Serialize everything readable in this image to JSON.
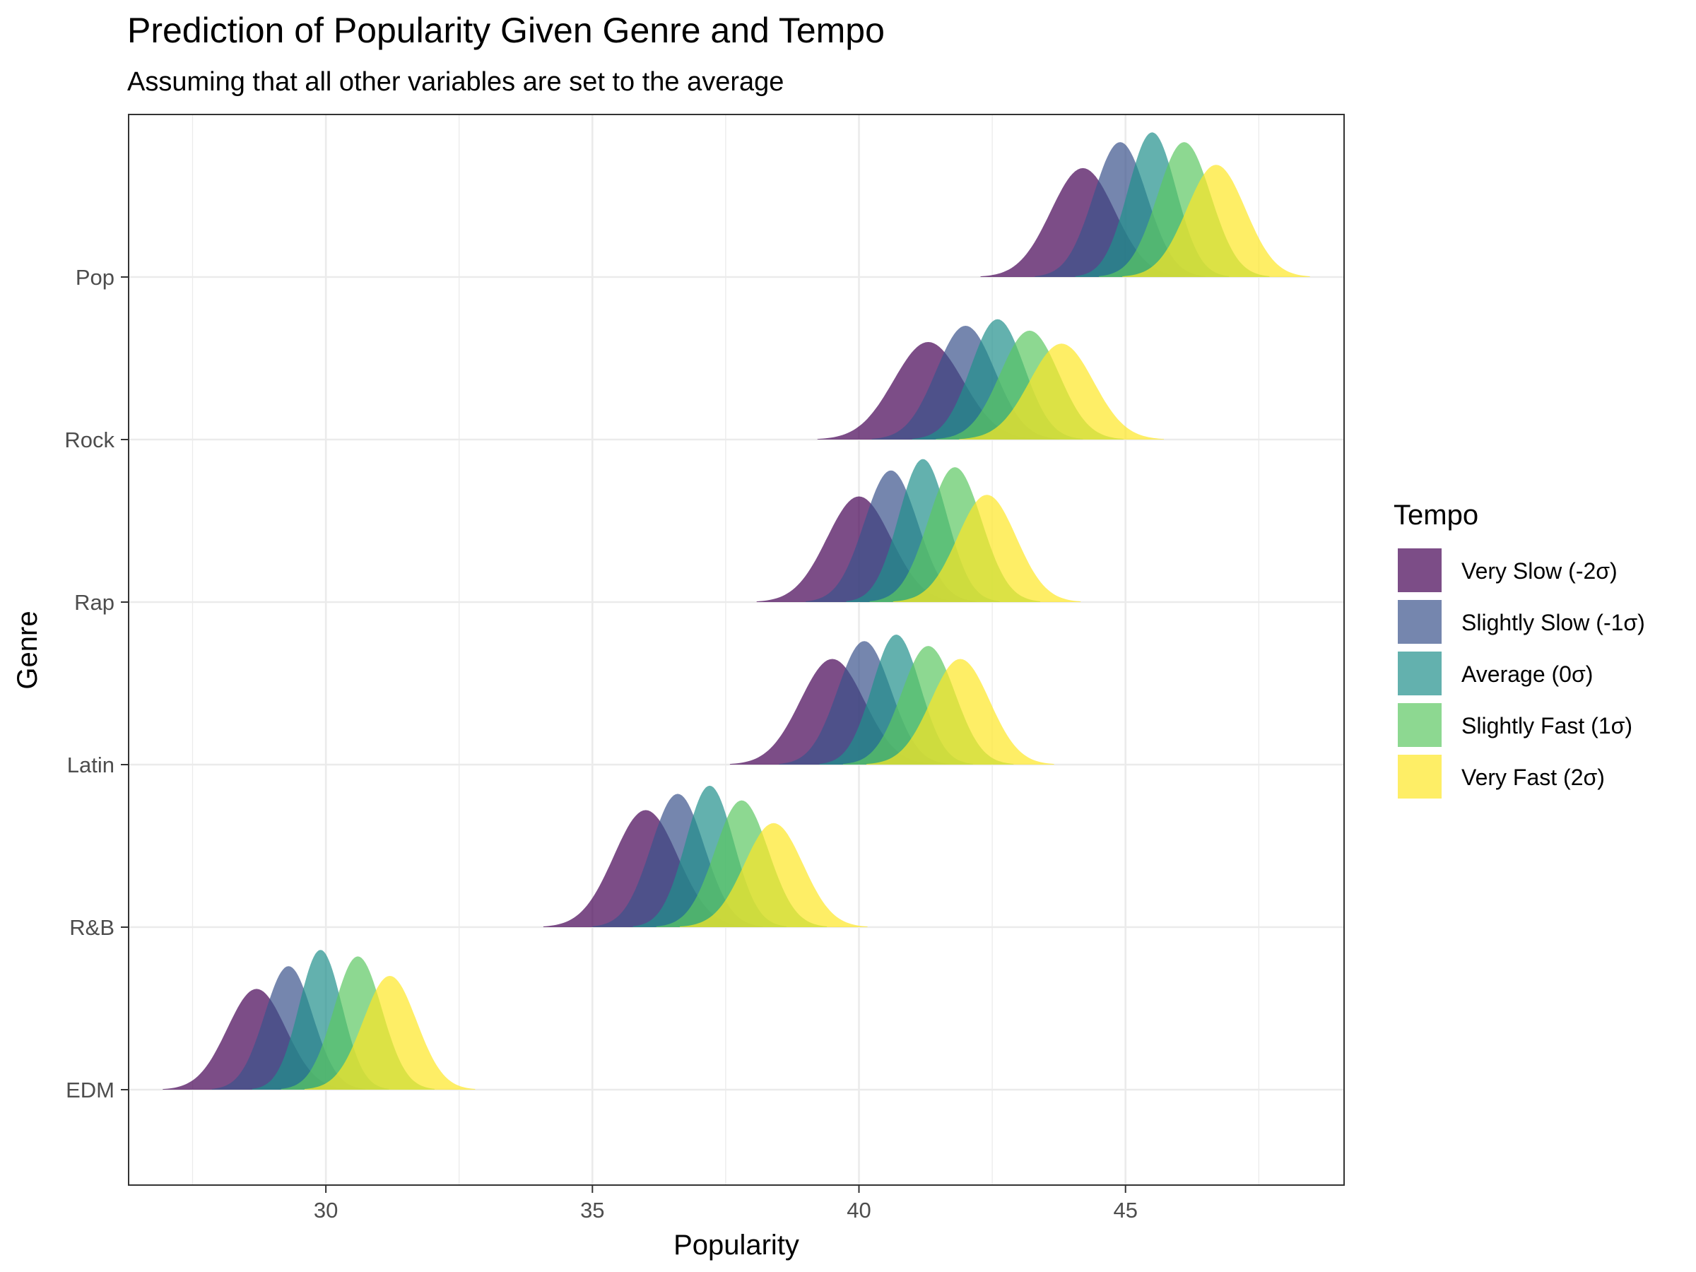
{
  "chart_data": {
    "type": "ridgeline",
    "title": "Prediction of Popularity Given Genre and Tempo",
    "subtitle": "Assuming that all other variables are set to the average",
    "xlabel": "Popularity",
    "ylabel": "Genre",
    "xlim": [
      26.3,
      49.1
    ],
    "x_ticks": [
      30,
      35,
      40,
      45
    ],
    "x_tick_labels": [
      "30",
      "35",
      "40",
      "45"
    ],
    "grid": true,
    "legend": {
      "title": "Tempo",
      "position": "right",
      "items": [
        "Very Slow (-2σ)",
        "Slightly Slow (-1σ)",
        "Average (0σ)",
        "Slightly Fast (1σ)",
        "Very Fast (2σ)"
      ]
    },
    "colors": [
      "#440154",
      "#3B528B",
      "#21908C",
      "#5DC863",
      "#FDE725"
    ],
    "genres": [
      "EDM",
      "R&B",
      "Latin",
      "Rap",
      "Rock",
      "Pop"
    ],
    "series": [
      {
        "name": "Very Slow (-2σ)",
        "peaks": [
          28.7,
          36.0,
          39.5,
          40.0,
          41.3,
          44.2
        ],
        "peak_heights": [
          0.62,
          0.72,
          0.65,
          0.65,
          0.6,
          0.67
        ],
        "spread": [
          0.55,
          0.6,
          0.6,
          0.6,
          0.65,
          0.6
        ]
      },
      {
        "name": "Slightly Slow (-1σ)",
        "peaks": [
          29.3,
          36.6,
          40.1,
          40.6,
          42.0,
          44.9
        ],
        "peak_heights": [
          0.76,
          0.82,
          0.76,
          0.81,
          0.7,
          0.83
        ],
        "spread": [
          0.45,
          0.5,
          0.5,
          0.5,
          0.55,
          0.5
        ]
      },
      {
        "name": "Average (0σ)",
        "peaks": [
          29.9,
          37.2,
          40.7,
          41.2,
          42.6,
          45.5
        ],
        "peak_heights": [
          0.86,
          0.87,
          0.8,
          0.88,
          0.74,
          0.89
        ],
        "spread": [
          0.4,
          0.45,
          0.45,
          0.45,
          0.5,
          0.45
        ]
      },
      {
        "name": "Slightly Fast (1σ)",
        "peaks": [
          30.6,
          37.8,
          41.3,
          41.8,
          43.2,
          46.1
        ],
        "peak_heights": [
          0.82,
          0.78,
          0.73,
          0.83,
          0.67,
          0.83
        ],
        "spread": [
          0.45,
          0.5,
          0.5,
          0.5,
          0.55,
          0.5
        ]
      },
      {
        "name": "Very Fast (2σ)",
        "peaks": [
          31.2,
          38.4,
          41.9,
          42.4,
          43.8,
          46.7
        ],
        "peak_heights": [
          0.7,
          0.64,
          0.65,
          0.66,
          0.59,
          0.69
        ],
        "spread": [
          0.5,
          0.55,
          0.55,
          0.55,
          0.6,
          0.55
        ]
      }
    ]
  }
}
